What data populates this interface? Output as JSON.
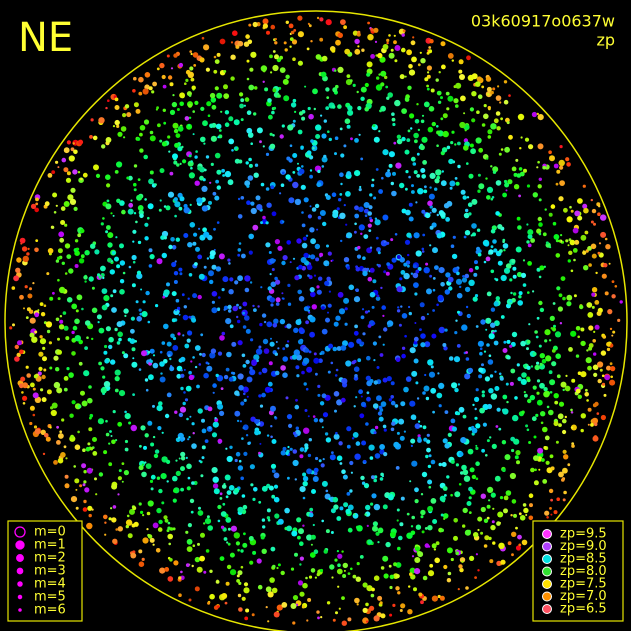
{
  "header": {
    "direction": "NE",
    "frame_id": "03k60917o0637w",
    "mode": "zp"
  },
  "magnitude_legend": [
    "m=0",
    "m=1",
    "m=2",
    "m=3",
    "m=4",
    "m=5",
    "m=6"
  ],
  "zp_legend": [
    "zp=9.5",
    "zp=9.0",
    "zp=8.5",
    "zp=8.0",
    "zp=7.5",
    "zp=7.0",
    "zp=6.5"
  ]
}
